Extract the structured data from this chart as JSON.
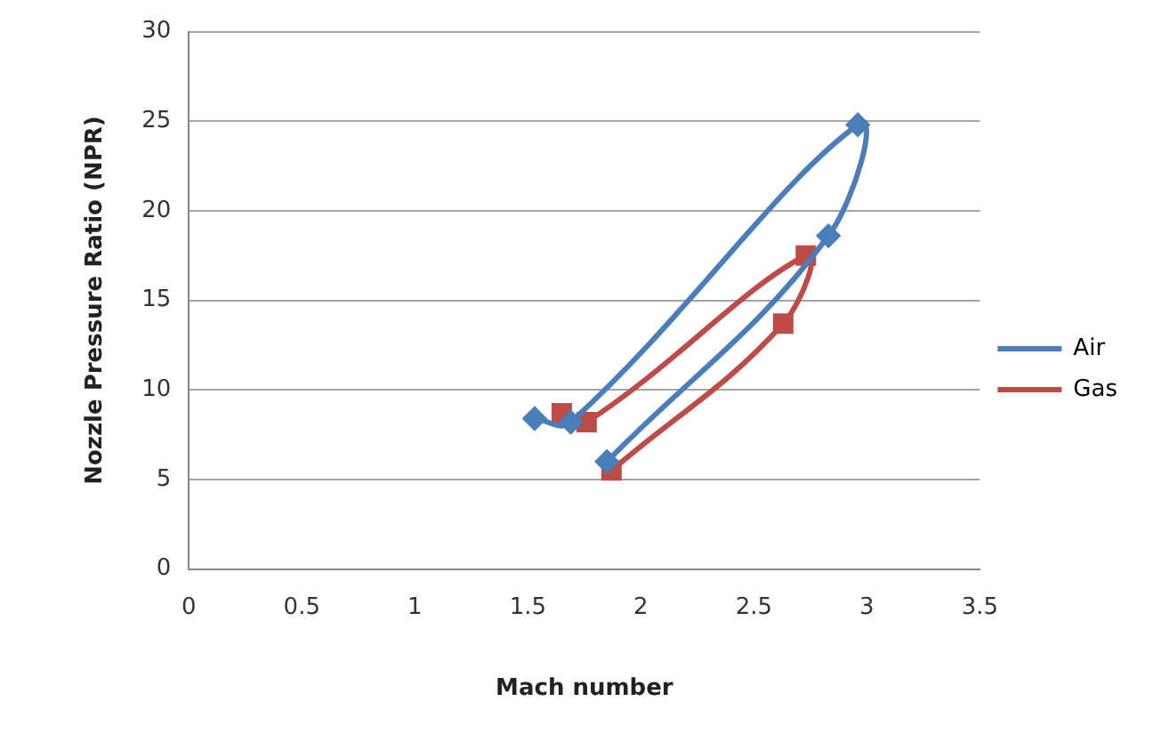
{
  "chart_data": {
    "type": "line",
    "xlabel": "Mach number",
    "ylabel": "Nozzle Pressure Ratio (NPR)",
    "xlim": [
      0,
      3.5
    ],
    "xticks": [
      0,
      0.5,
      1,
      1.5,
      2,
      2.5,
      3,
      3.5
    ],
    "ylim": [
      0,
      30
    ],
    "yticks": [
      0,
      5,
      10,
      15,
      20,
      25,
      30
    ],
    "grid": "y",
    "legend": "right",
    "series": [
      {
        "name": "Air",
        "color": "#4a7ebb",
        "marker": "diamond",
        "x": [
          1.53,
          1.69,
          2.96,
          2.83,
          1.85
        ],
        "values": [
          8.4,
          8.2,
          24.8,
          18.6,
          6.0
        ]
      },
      {
        "name": "Gas",
        "color": "#be4b48",
        "marker": "square",
        "x": [
          1.65,
          1.76,
          2.73,
          2.63,
          1.87
        ],
        "values": [
          8.7,
          8.2,
          17.5,
          13.7,
          5.5
        ]
      }
    ]
  }
}
